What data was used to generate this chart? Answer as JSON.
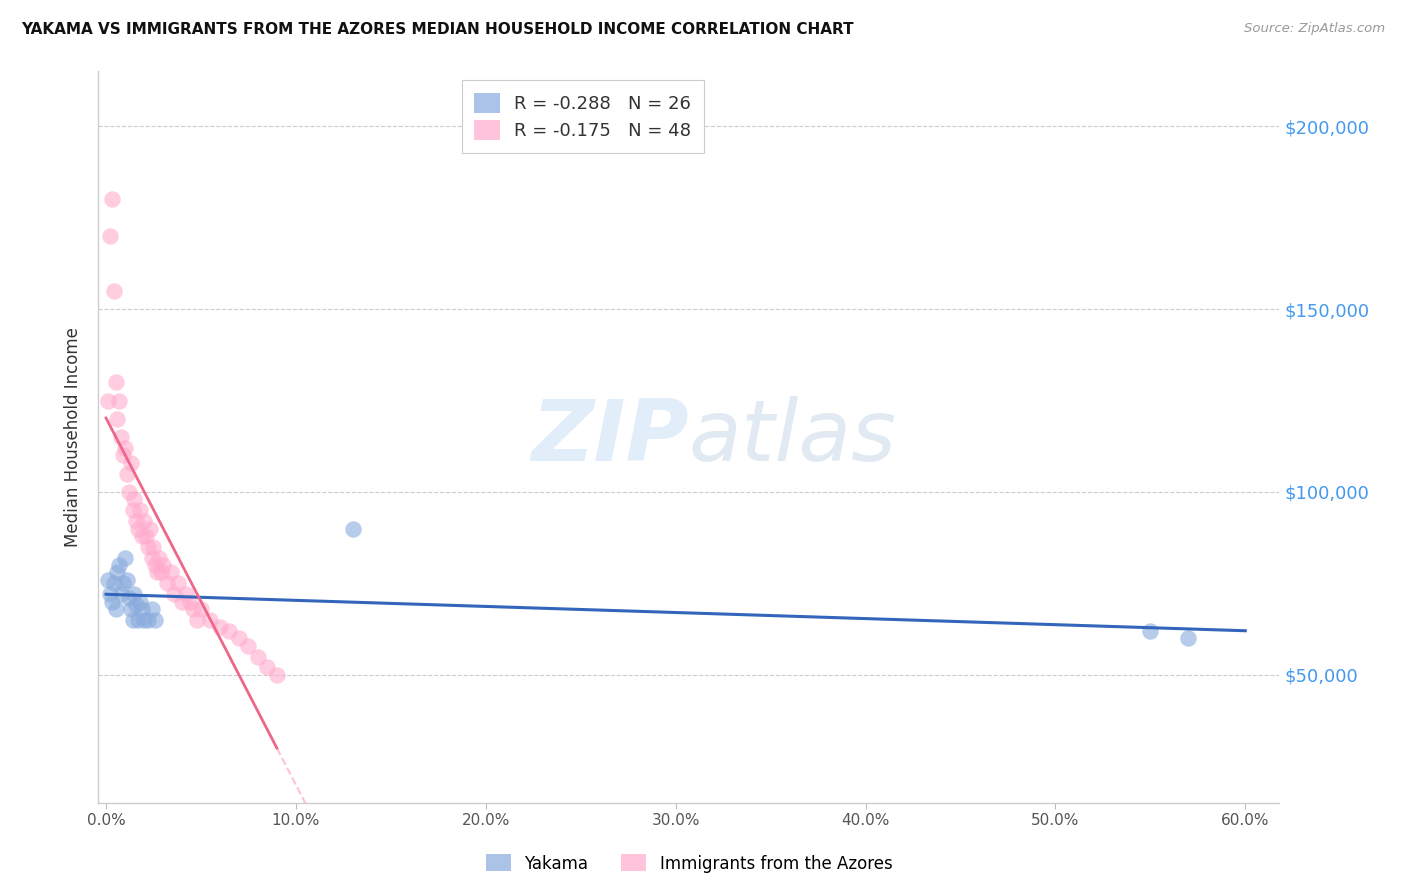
{
  "title": "YAKAMA VS IMMIGRANTS FROM THE AZORES MEDIAN HOUSEHOLD INCOME CORRELATION CHART",
  "source": "Source: ZipAtlas.com",
  "ylabel": "Median Household Income",
  "xtick_labels": [
    "0.0%",
    "10.0%",
    "20.0%",
    "30.0%",
    "40.0%",
    "50.0%",
    "60.0%"
  ],
  "xtick_vals": [
    0.0,
    0.1,
    0.2,
    0.3,
    0.4,
    0.5,
    0.6
  ],
  "ytick_labels": [
    "$50,000",
    "$100,000",
    "$150,000",
    "$200,000"
  ],
  "ytick_vals": [
    50000,
    100000,
    150000,
    200000
  ],
  "ylim": [
    15000,
    215000
  ],
  "xlim": [
    -0.004,
    0.618
  ],
  "legend_R1": "-0.288",
  "legend_N1": "26",
  "legend_R2": "-0.175",
  "legend_N2": "48",
  "watermark_color": "#c8ddf0",
  "blue_scatter_color": "#88aadd",
  "pink_scatter_color": "#ffaacc",
  "blue_line_color": "#3366bb",
  "pink_solid_color": "#ee6688",
  "pink_dash_color": "#ffaabb",
  "yakama_x": [
    0.001,
    0.002,
    0.003,
    0.004,
    0.005,
    0.006,
    0.007,
    0.008,
    0.009,
    0.01,
    0.011,
    0.012,
    0.013,
    0.014,
    0.015,
    0.016,
    0.017,
    0.018,
    0.019,
    0.02,
    0.022,
    0.024,
    0.026,
    0.13,
    0.55,
    0.57
  ],
  "yakama_y": [
    76000,
    72000,
    70000,
    75000,
    68000,
    78000,
    80000,
    72000,
    75000,
    82000,
    76000,
    71000,
    68000,
    65000,
    72000,
    69000,
    65000,
    70000,
    68000,
    65000,
    65000,
    68000,
    65000,
    90000,
    62000,
    60000
  ],
  "azores_x": [
    0.001,
    0.002,
    0.003,
    0.004,
    0.005,
    0.006,
    0.007,
    0.008,
    0.009,
    0.01,
    0.011,
    0.012,
    0.013,
    0.014,
    0.015,
    0.016,
    0.017,
    0.018,
    0.019,
    0.02,
    0.021,
    0.022,
    0.023,
    0.024,
    0.025,
    0.026,
    0.027,
    0.028,
    0.029,
    0.03,
    0.032,
    0.034,
    0.036,
    0.038,
    0.04,
    0.042,
    0.044,
    0.046,
    0.048,
    0.05,
    0.055,
    0.06,
    0.065,
    0.07,
    0.075,
    0.08,
    0.085,
    0.09
  ],
  "azores_y": [
    125000,
    170000,
    180000,
    155000,
    130000,
    120000,
    125000,
    115000,
    110000,
    112000,
    105000,
    100000,
    108000,
    95000,
    98000,
    92000,
    90000,
    95000,
    88000,
    92000,
    88000,
    85000,
    90000,
    82000,
    85000,
    80000,
    78000,
    82000,
    78000,
    80000,
    75000,
    78000,
    72000,
    75000,
    70000,
    72000,
    70000,
    68000,
    65000,
    68000,
    65000,
    63000,
    62000,
    60000,
    58000,
    55000,
    52000,
    50000
  ]
}
